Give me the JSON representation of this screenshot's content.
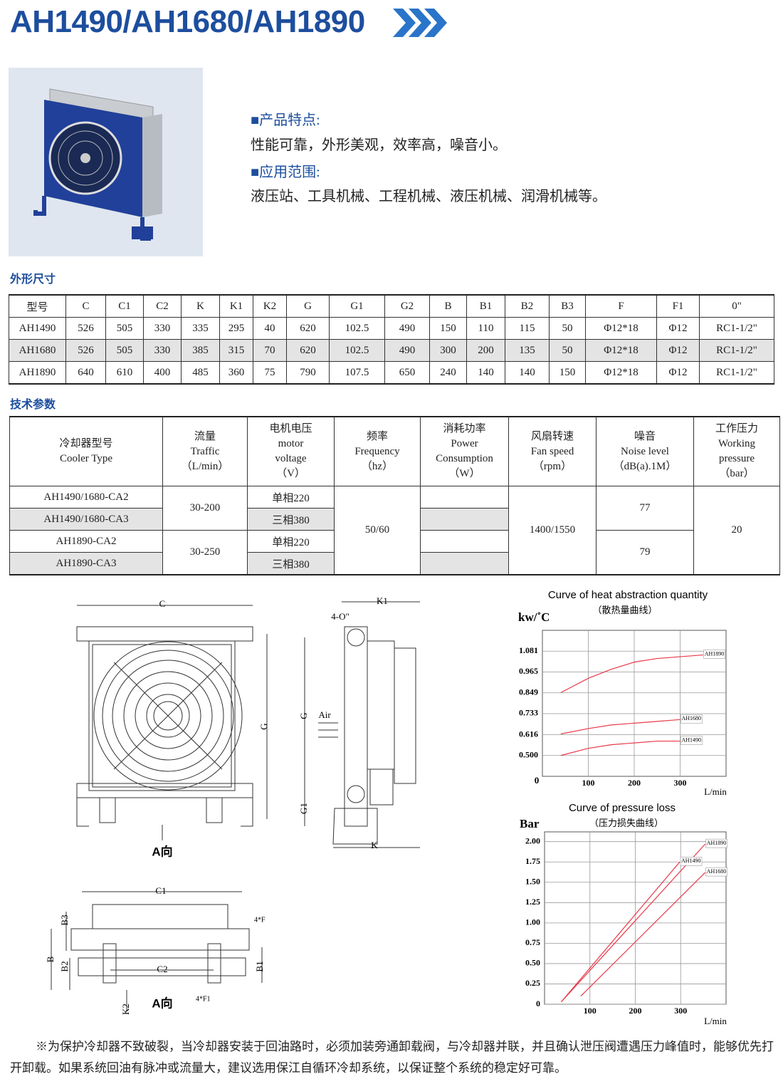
{
  "header": {
    "title": "AH1490/AH1680/AH1890"
  },
  "features": {
    "heading1": "■产品特点:",
    "text1": "性能可靠，外形美观，效率高，噪音小。",
    "heading2": "■应用范围:",
    "text2": "液压站、工具机械、工程机械、液压机械、润滑机械等。"
  },
  "dimensions": {
    "title": "外形尺寸",
    "header": [
      "型号",
      "C",
      "C1",
      "C2",
      "K",
      "K1",
      "K2",
      "G",
      "G1",
      "G2",
      "B",
      "B1",
      "B2",
      "B3",
      "F",
      "F1",
      "0\""
    ],
    "rows": [
      [
        "AH1490",
        "526",
        "505",
        "330",
        "335",
        "295",
        "40",
        "620",
        "102.5",
        "490",
        "150",
        "110",
        "115",
        "50",
        "Φ12*18",
        "Φ12",
        "RC1-1/2\""
      ],
      [
        "AH1680",
        "526",
        "505",
        "330",
        "385",
        "315",
        "70",
        "620",
        "102.5",
        "490",
        "300",
        "200",
        "135",
        "50",
        "Φ12*18",
        "Φ12",
        "RC1-1/2\""
      ],
      [
        "AH1890",
        "640",
        "610",
        "400",
        "485",
        "360",
        "75",
        "790",
        "107.5",
        "650",
        "240",
        "140",
        "140",
        "150",
        "Φ12*18",
        "Φ12",
        "RC1-1/2\""
      ]
    ]
  },
  "specs": {
    "title": "技术参数",
    "header": [
      [
        "冷却器型号",
        "Cooler Type"
      ],
      [
        "流量",
        "Traffic",
        "（L/min）"
      ],
      [
        "电机电压",
        "motor",
        "voltage",
        "（V）"
      ],
      [
        "频率",
        "Frequency",
        "（hz）"
      ],
      [
        "消耗功率",
        "Power",
        "Consumption",
        "（W）"
      ],
      [
        "风扇转速",
        "Fan speed",
        "（rpm）"
      ],
      [
        "噪音",
        "Noise level",
        "（dB(a).1M）"
      ],
      [
        "工作压力",
        "Working",
        "pressure",
        "（bar）"
      ]
    ],
    "models": [
      "AH1490/1680-CA2",
      "AH1490/1680-CA3",
      "AH1890-CA2",
      "AH1890-CA3"
    ],
    "traffic": [
      "30-200",
      "30-250"
    ],
    "voltage": [
      "单相220",
      "三相380",
      "单相220",
      "三相380"
    ],
    "frequency": "50/60",
    "fan_speed": "1400/1550",
    "noise": [
      "77",
      "79"
    ],
    "pressure": "20"
  },
  "drawings": {
    "labels": [
      "C",
      "G",
      "A向",
      "K1",
      "4-O\"",
      "G",
      "Air",
      "G1",
      "K",
      "C1",
      "C2",
      "B3",
      "B",
      "B2",
      "B1",
      "K2",
      "4*F",
      "4*F1",
      "A向"
    ]
  },
  "chart_data": [
    {
      "type": "line",
      "title": "Curve of heat abstraction quantity",
      "subtitle": "（散热量曲线）",
      "y_label": "kw/˚C",
      "x_label": "L/min",
      "origin_label": "0",
      "xlim": [
        0,
        400
      ],
      "xticks": [
        100,
        200,
        300
      ],
      "ylim": [
        0.384,
        1.197
      ],
      "yticks": [
        {
          "value": 0.5,
          "label": "0.500"
        },
        0.616,
        0.733,
        0.849,
        0.965,
        1.081
      ],
      "grid": true,
      "series": [
        {
          "name": "AH1890",
          "color": "#e8394a",
          "x": [
            40,
            100,
            150,
            200,
            250,
            300,
            350
          ],
          "values": [
            0.85,
            0.93,
            0.98,
            1.02,
            1.04,
            1.05,
            1.06
          ]
        },
        {
          "name": "AH1680",
          "color": "#e8394a",
          "x": [
            40,
            100,
            150,
            200,
            250,
            300
          ],
          "values": [
            0.62,
            0.65,
            0.67,
            0.68,
            0.69,
            0.7
          ]
        },
        {
          "name": "AH1490",
          "color": "#e8394a",
          "x": [
            40,
            100,
            150,
            200,
            250,
            300
          ],
          "values": [
            0.5,
            0.54,
            0.56,
            0.57,
            0.58,
            0.58
          ]
        }
      ]
    },
    {
      "type": "line",
      "title": "Curve of pressure loss",
      "subtitle": "（压力损失曲线）",
      "y_label": "Bar",
      "x_label": "L/min",
      "xlim": [
        0,
        400
      ],
      "xticks": [
        100,
        200,
        300
      ],
      "ylim": [
        0,
        2.12
      ],
      "yticks": [
        0,
        {
          "value": 0.25,
          "label": "0.25"
        },
        {
          "value": 0.5,
          "label": "0.50"
        },
        {
          "value": 0.75,
          "label": "0.75"
        },
        {
          "value": 1,
          "label": "1.00"
        },
        {
          "value": 1.25,
          "label": "1.25"
        },
        {
          "value": 1.5,
          "label": "1.50"
        },
        {
          "value": 1.75,
          "label": "1.75"
        },
        {
          "value": 2,
          "label": "2.00"
        }
      ],
      "grid": true,
      "series": [
        {
          "name": "AH1890",
          "color": "#e8394a",
          "x": [
            37,
            354
          ],
          "values": [
            0.03,
            1.97
          ]
        },
        {
          "name": "AH1490",
          "color": "#e8394a",
          "x": [
            37,
            298
          ],
          "values": [
            0.03,
            1.75
          ]
        },
        {
          "name": "AH1680",
          "color": "#e8394a",
          "x": [
            80,
            354
          ],
          "values": [
            0.1,
            1.62
          ]
        }
      ]
    }
  ]
}
